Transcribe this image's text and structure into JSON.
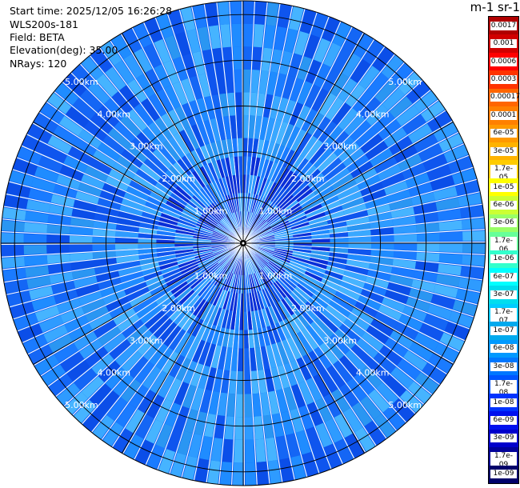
{
  "info": {
    "start_time": "Start time: 2025/12/05 16:26:28",
    "instrument": "WLS200s-181",
    "field": "Field: BETA",
    "elevation": "Elevation(deg): 35.00",
    "nrays": "NRays: 120"
  },
  "colorbar": {
    "title": "m-1 sr-1",
    "labels": [
      "0.0017",
      "0.001",
      "0.0006",
      "0.0003",
      "0.00017",
      "0.0001",
      "6e-05",
      "3e-05",
      "1.7e-05",
      "1e-05",
      "6e-06",
      "3e-06",
      "1.7e-06",
      "1e-06",
      "6e-07",
      "3e-07",
      "1.7e-07",
      "1e-07",
      "6e-08",
      "3e-08",
      "1.7e-08",
      "1e-08",
      "6e-09",
      "3e-09",
      "1.7e-09",
      "1e-09"
    ],
    "colors": [
      "#b00000",
      "#d00000",
      "#ff0000",
      "#ff3300",
      "#ff6600",
      "#ff8000",
      "#ff9900",
      "#ffb300",
      "#ffcc00",
      "#ffff00",
      "#ccff33",
      "#99ff66",
      "#66ff99",
      "#33ffcc",
      "#00ffff",
      "#00ddee",
      "#00ccff",
      "#00aaee",
      "#0099ff",
      "#0077ff",
      "#0055ff",
      "#0033ff",
      "#0011ee",
      "#0000cc",
      "#000099",
      "#00006a"
    ]
  },
  "chart_data": {
    "type": "heatmap",
    "subtype": "ppi-polar",
    "n_rays": 120,
    "max_range_km": 5.3,
    "range_rings_km": [
      1,
      2,
      3,
      4,
      5
    ],
    "ring_labels": [
      "1.00km",
      "2.00km",
      "3.00km",
      "4.00km",
      "5.00km"
    ],
    "spokes_deg": [
      0,
      30,
      60,
      90,
      120,
      150,
      180,
      210,
      240,
      270,
      300,
      330
    ],
    "dominant_value_range": [
      "3e-08",
      "1e-08"
    ],
    "field": "BETA"
  }
}
